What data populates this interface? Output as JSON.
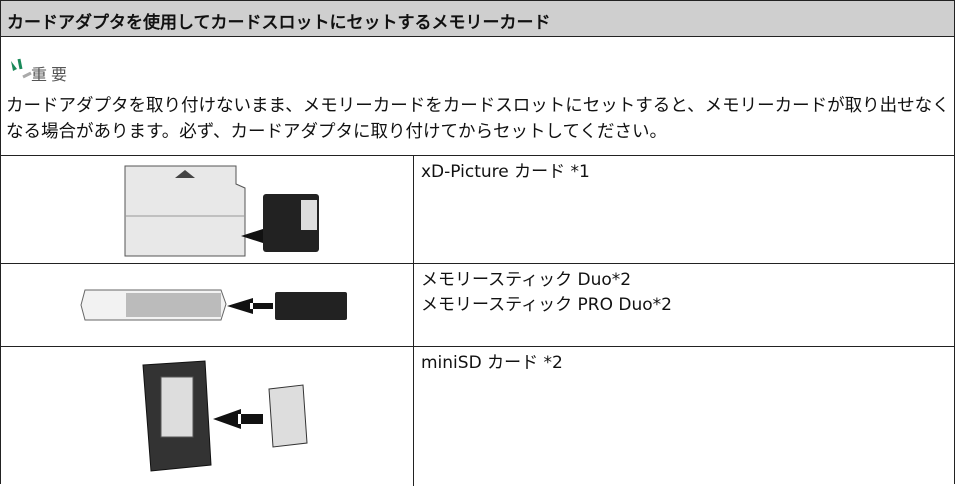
{
  "header": {
    "title": "カードアダプタを使用してカードスロットにセットするメモリーカード"
  },
  "notice": {
    "label": "重要",
    "text": "カードアダプタを取り付けないまま、メモリーカードをカードスロットにセットすると、メモリーカードが取り出せなくなる場合があります。必ず、カードアダプタに取り付けてからセットしてください。"
  },
  "table": {
    "rows": [
      [
        "xD-Picture カード *1"
      ],
      [
        "メモリースティック Duo*2",
        "メモリースティック PRO Duo*2"
      ],
      [
        "miniSD カード *2"
      ]
    ]
  }
}
